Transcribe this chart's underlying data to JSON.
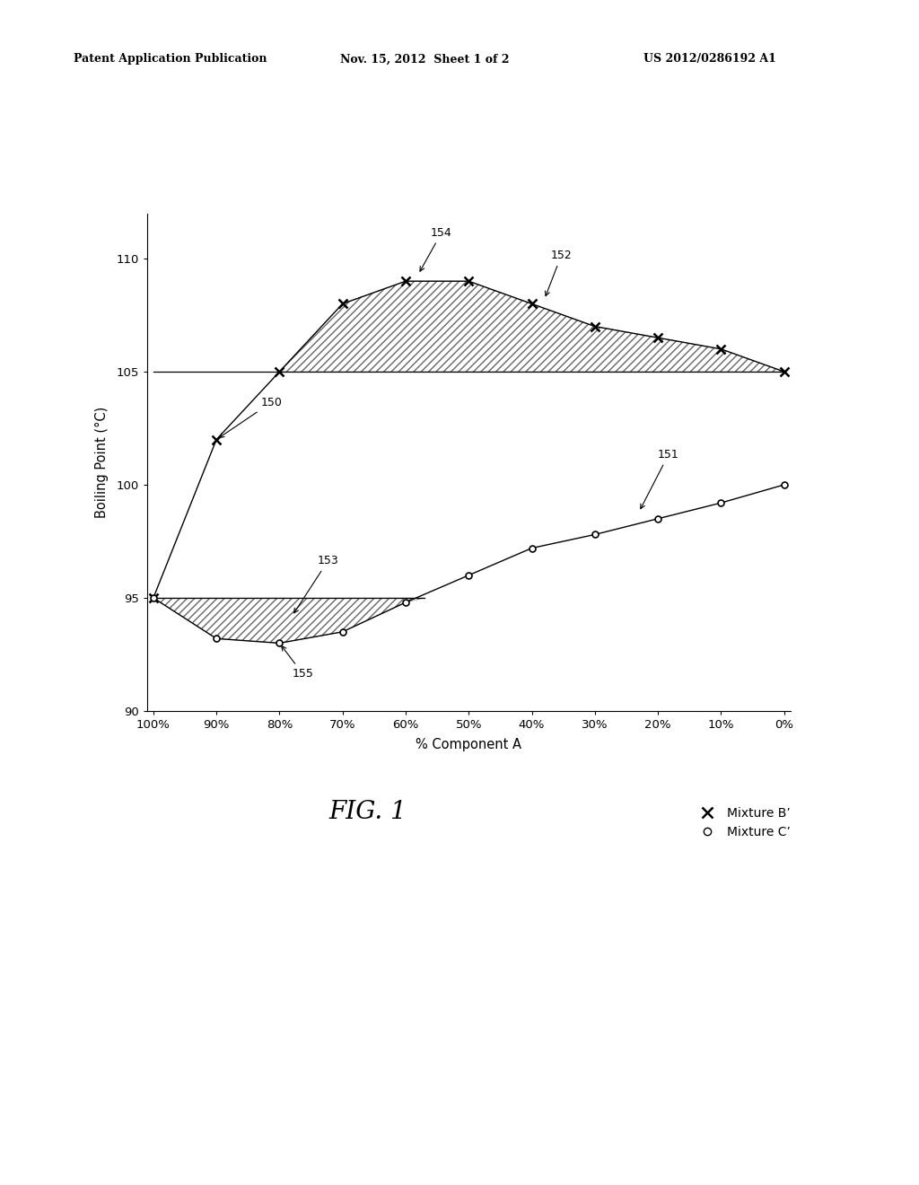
{
  "header_left": "Patent Application Publication",
  "header_mid": "Nov. 15, 2012  Sheet 1 of 2",
  "header_right": "US 2012/0286192 A1",
  "fig_label": "FIG. 1",
  "xlabel": "% Component A",
  "ylabel": "Boiling Point (°C)",
  "ylim": [
    90,
    112
  ],
  "yticks": [
    90,
    95,
    100,
    105,
    110
  ],
  "xtick_labels": [
    "100%",
    "90%",
    "80%",
    "70%",
    "60%",
    "50%",
    "40%",
    "30%",
    "20%",
    "10%",
    "0%"
  ],
  "xtick_vals": [
    0,
    10,
    20,
    30,
    40,
    50,
    60,
    70,
    80,
    90,
    100
  ],
  "mixture_B_x": [
    0,
    10,
    20,
    30,
    40,
    50,
    60,
    70,
    80,
    90,
    100
  ],
  "mixture_B_y": [
    95,
    102,
    105,
    108,
    109,
    109,
    108,
    107,
    106.5,
    106,
    105
  ],
  "mixture_C_x": [
    0,
    10,
    20,
    30,
    40,
    50,
    60,
    70,
    80,
    90,
    100
  ],
  "mixture_C_y": [
    95,
    93.2,
    93.0,
    93.5,
    94.8,
    96.0,
    97.2,
    97.8,
    98.5,
    99.2,
    100
  ],
  "flat_line_x": [
    0,
    100
  ],
  "flat_line_y": 105,
  "upper_hatch_B_x": [
    0,
    10,
    20,
    30,
    40,
    50,
    60,
    70,
    80,
    90,
    100
  ],
  "upper_hatch_B_y": [
    95,
    102,
    105,
    108,
    109,
    109,
    108,
    107,
    106.5,
    106,
    105
  ],
  "bg_color": "#ffffff",
  "line_color": "#000000",
  "hatch_color": "#666666"
}
